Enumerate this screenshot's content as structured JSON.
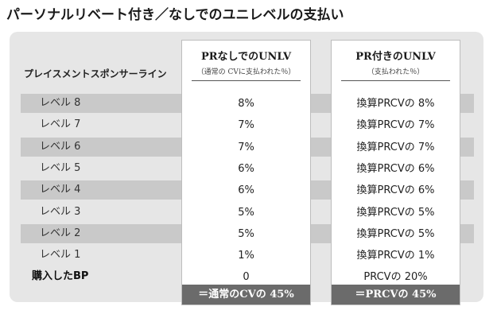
{
  "title": "パーソナルリベート付き／なしでのユニレベルの支払い",
  "row_header": "プレイスメントスポンサーライン",
  "columns": [
    {
      "heading": "PRなしでのUNLV",
      "subheading": "（通常の CVに支払われた％）",
      "values": [
        "8%",
        "7%",
        "7%",
        "6%",
        "6%",
        "5%",
        "5%",
        "1%",
        "0"
      ],
      "footer": "＝通常のCVの 45%"
    },
    {
      "heading": "PR付きのUNLV",
      "subheading": "（支払われた％）",
      "values": [
        "換算PRCVの 8%",
        "換算PRCVの 7%",
        "換算PRCVの 7%",
        "換算PRCVの 6%",
        "換算PRCVの 6%",
        "換算PRCVの 5%",
        "換算PRCVの 5%",
        "換算PRCVの 1%",
        "PRCVの 20%"
      ],
      "footer": "＝PRCVの 45%"
    }
  ],
  "rows": [
    "レベル 8",
    "レベル 7",
    "レベル 6",
    "レベル 5",
    "レベル 4",
    "レベル 3",
    "レベル 2",
    "レベル 1",
    "購入したBP"
  ],
  "colors": {
    "panel": "#e6e6e6",
    "stripe": "#c9c9c9",
    "footer": "#6b6b6b"
  }
}
